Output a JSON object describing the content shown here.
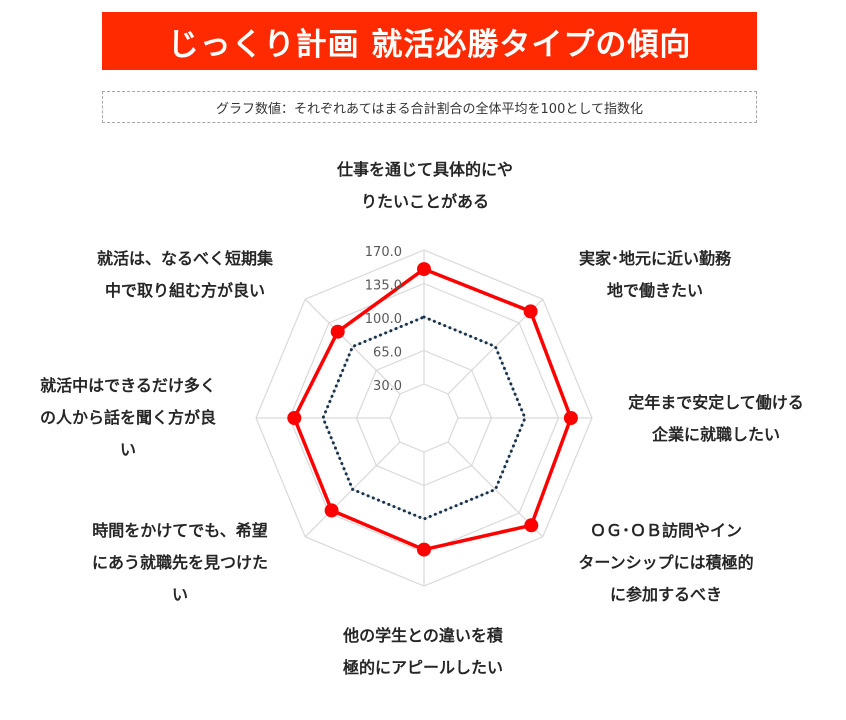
{
  "header": {
    "title": "じっくり計画 就活必勝タイプの傾向",
    "subtitle": "グラフ数値：それぞれあてはまる合計割合の全体平均を100として指数化"
  },
  "colors": {
    "banner": "#ff2a00",
    "series_main": "#ff0000",
    "series_average": "#17334d",
    "grid": "#d9d9d9"
  },
  "chart_data": {
    "type": "radar",
    "axes": [
      "仕事を通じて具体的にやりたいことがある",
      "実家・地元に近い勤務地で働きたい",
      "定年まで安定して働ける企業に就職したい",
      "ＯＧ・ＯＢ訪問やインターンシップには積極的に参加するべき",
      "他の学生との違いを積極的にアピールしたい",
      "時間をかけてでも、希望にあう就職先を見つけたい",
      "就活中はできるだけ多くの人から話を聞く方が良い",
      "就活は、なるべく短期集中で取り組む方が良い"
    ],
    "axis_labels": [
      "仕事を通じて具体的にや\nりたいことがある",
      "実家･地元に近い勤務\n地で働きたい",
      "定年まで安定して働ける\n企業に就職したい",
      "ＯＧ･ＯＢ訪問やイン\nターンシップには積極的\nに参加するべき",
      "他の学生との違いを積\n極的にアピールしたい",
      "時間をかけてでも、希望\nにあう就職先を見つけた\nい",
      "就活中はできるだけ多く\nの人から話を聞く方が良\nい",
      "就活は、なるべく短期集\n中で取り組む方が良い"
    ],
    "r_ticks": [
      "170.0",
      "135.0",
      "100.0",
      "65.0",
      "30.0"
    ],
    "rlim": [
      30,
      170
    ],
    "series": [
      {
        "values": [
          150,
          152,
          148,
          153,
          132,
          131,
          130,
          122
        ],
        "style": "solid"
      },
      {
        "values": [
          100,
          100,
          100,
          100,
          100,
          100,
          100,
          100
        ],
        "style": "dotted"
      }
    ],
    "grid": true
  }
}
